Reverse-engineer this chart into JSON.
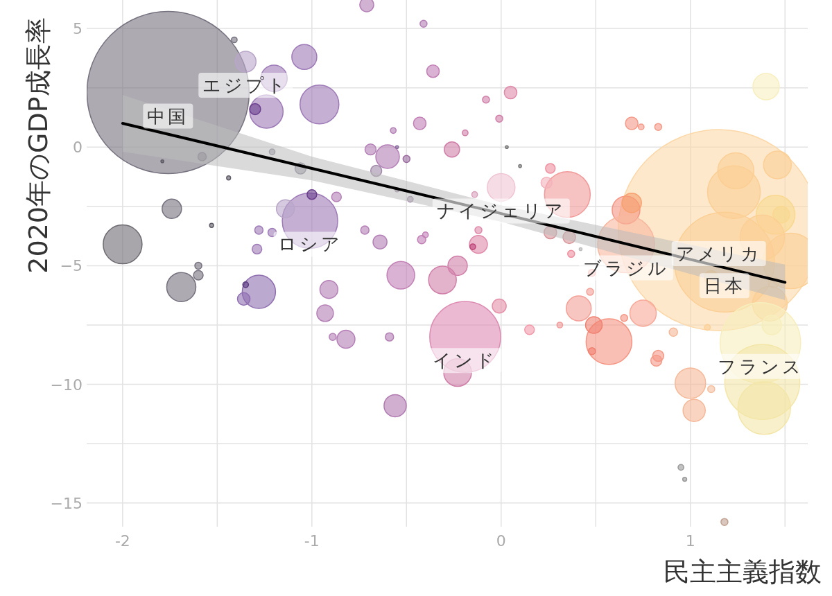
{
  "chart_data": {
    "type": "bubble",
    "xlabel": "民主主義指数",
    "ylabel": "2020年のGDP成長率",
    "xlim": [
      -2.19,
      1.62
    ],
    "ylim": [
      -16,
      6.2
    ],
    "xticks": [
      -2,
      {
        "value": -1.5,
        "label": null
      },
      -1,
      {
        "value": -0.5,
        "label": null
      },
      0,
      {
        "value": 0.5,
        "label": null
      },
      1,
      {
        "value": 1.5,
        "label": null
      }
    ],
    "yticks": [
      {
        "value": -15,
        "label": "−15"
      },
      {
        "value": -12.5,
        "label": null
      },
      {
        "value": -10,
        "label": "−10"
      },
      {
        "value": -7.5,
        "label": null
      },
      {
        "value": -5,
        "label": "−5"
      },
      {
        "value": -2.5,
        "label": null
      },
      0,
      {
        "value": 2.5,
        "label": null
      },
      5
    ],
    "grid": true,
    "series": [
      {
        "x": [
          1.15,
          -1.76,
          1.18,
          -1.41,
          -1.35,
          -1.04,
          -1.2,
          -1.24,
          -1.3,
          -0.96,
          -1.79,
          -1.58,
          -1.21,
          -1.44,
          -1.06,
          -1.74,
          -1.53,
          -1.28,
          -1.21,
          -1.29,
          -1.01,
          -1.14,
          -1.0,
          -0.87,
          -2.0,
          -1.6,
          -1.6,
          -1.69,
          -1.28,
          -1.36,
          -1.35,
          -0.91,
          -0.93,
          -0.89,
          -0.82,
          -0.71,
          -0.41,
          -0.36,
          -0.08,
          0.05,
          -0.43,
          -0.57,
          -0.19,
          -0.01,
          -0.26,
          -0.69,
          -0.6,
          -0.55,
          -0.5,
          -0.66,
          0.03,
          0.1,
          0.26,
          0.0,
          0.35,
          0.24,
          -0.14,
          -0.48,
          -0.55,
          0.26,
          0.36,
          0.37,
          -0.72,
          -0.64,
          -0.42,
          -0.4,
          -0.12,
          -0.12,
          -0.15,
          -0.53,
          -0.31,
          -0.23,
          -0.19,
          -0.23,
          -0.01,
          -0.59,
          -0.56,
          0.15,
          0.31,
          0.41,
          0.48,
          0.47,
          0.57,
          0.49,
          0.48,
          0.42,
          0.69,
          0.74,
          0.83,
          0.66,
          0.69,
          0.66,
          1.24,
          1.46,
          1.23,
          1.45,
          1.48,
          1.11,
          1.44,
          1.38,
          1.42,
          1.53,
          1.09,
          1.37,
          1.38,
          1.39,
          1.43,
          1.0,
          1.02,
          1.11,
          0.91,
          0.83,
          0.82,
          0.75,
          0.65,
          0.95,
          0.97,
          1.18,
          1.4
        ],
        "values": [
          -3.5,
          2.3,
          -4.85,
          4.52,
          3.6,
          3.8,
          2.9,
          1.5,
          1.6,
          1.8,
          -0.6,
          -0.4,
          -0.2,
          -1.3,
          -0.9,
          -2.6,
          -3.3,
          -3.5,
          -3.6,
          -4.3,
          -3.1,
          -2.6,
          -2.0,
          -2.1,
          -4.1,
          -5.0,
          -5.4,
          -5.9,
          -6.1,
          -6.4,
          -5.8,
          -6.0,
          -7.0,
          -8.0,
          -8.1,
          6.0,
          5.2,
          3.2,
          2.0,
          2.3,
          1.0,
          0.7,
          0.6,
          1.2,
          -0.1,
          -0.1,
          -0.4,
          0.0,
          -0.5,
          -1.0,
          0.0,
          -0.8,
          -0.9,
          -1.7,
          -2.0,
          -1.5,
          -2.0,
          -2.2,
          -1.8,
          -3.6,
          -3.8,
          -4.5,
          -3.5,
          -4.0,
          -3.9,
          -3.7,
          -3.5,
          -4.1,
          -4.2,
          -5.4,
          -5.6,
          -5.0,
          -8.0,
          -9.5,
          -6.7,
          -8.0,
          -10.9,
          -7.7,
          -7.5,
          -6.8,
          -5.3,
          -6.1,
          -8.2,
          -7.5,
          -8.6,
          -4.3,
          1.0,
          0.85,
          0.85,
          -2.65,
          -2.35,
          -4.1,
          -1.0,
          -0.75,
          -1.9,
          -2.85,
          -2.85,
          -5.5,
          -5.7,
          -3.8,
          -6.6,
          -4.8,
          -7.6,
          -8.25,
          -9.9,
          -11.0,
          -7.5,
          -9.95,
          -11.1,
          -10.2,
          -7.8,
          -8.8,
          -9.0,
          -7.0,
          -7.2,
          -13.5,
          -14.0,
          -15.8,
          2.55
        ],
        "sizes": [
          1,
          0.651,
          0.247,
          0.0008,
          0.0107,
          0.0154,
          0.0172,
          0.0274,
          0.003,
          0.0373,
          0.0002,
          0.0017,
          0.0008,
          0.0004,
          0.003,
          0.0093,
          0.0004,
          0.0017,
          0.0017,
          0.0023,
          0.0761,
          0.008,
          0.0023,
          0.0023,
          0.0373,
          0.0012,
          0.0023,
          0.021,
          0.0274,
          0.0039,
          0.0008,
          0.008,
          0.0068,
          0.0012,
          0.008,
          0.0048,
          0.0012,
          0.0039,
          0.0012,
          0.0039,
          0.0039,
          0.0008,
          0.0008,
          0.0012,
          0.0058,
          0.003,
          0.0137,
          0.0002,
          0.0012,
          0.003,
          0.0002,
          0.0002,
          0.0023,
          0.019,
          0.0518,
          0.003,
          0.0008,
          0.0008,
          0.0004,
          0.0039,
          0.0039,
          0.0012,
          0.0017,
          0.0048,
          0.0017,
          0.0008,
          0.0012,
          0.008,
          0.0008,
          0.019,
          0.019,
          0.0093,
          0.124,
          0.019,
          0.0048,
          0.0017,
          0.0122,
          0.0023,
          0.0008,
          0.0154,
          0.0012,
          0.0012,
          0.0518,
          0.0068,
          0.0012,
          0.0002,
          0.0039,
          0.0008,
          0.0012,
          0.019,
          0.0093,
          0.08,
          0.0322,
          0.019,
          0.0687,
          0.0373,
          0.0068,
          0.0048,
          0.003,
          0.0487,
          0.0297,
          0.0761,
          0.0008,
          0.16,
          0.139,
          0.0687,
          0.0093,
          0.023,
          0.0122,
          0.0012,
          0.0017,
          0.003,
          0.003,
          0.0172,
          0.0012,
          0.0008,
          0.0004,
          0.0012,
          0.0172
        ],
        "colors": [
          "#fcd8a8",
          "#77727f",
          "#fbcf95",
          "#77727f",
          "#b9a6c9",
          "#9e7bb8",
          "#9e7bb8",
          "#9e7bb8",
          "#6b3f8e",
          "#9e7bb8",
          "#5e5a66",
          "#77727f",
          "#8a8596",
          "#5e5a66",
          "#8a8596",
          "#77727f",
          "#5e5a66",
          "#9e7bb8",
          "#9e7bb8",
          "#9e7bb8",
          "#9e7bb8",
          "#b9a6c9",
          "#6b3f8e",
          "#b47fb6",
          "#6e6a72",
          "#77727f",
          "#77727f",
          "#77727f",
          "#8f6fb0",
          "#8f6fb0",
          "#5a3a7e",
          "#b47fb6",
          "#b47fb6",
          "#b47fb6",
          "#b47fb6",
          "#b47fb6",
          "#b47fb6",
          "#c27fb6",
          "#d07fa8",
          "#e088a8",
          "#c27fb6",
          "#b47fb6",
          "#d07fa8",
          "#d07fa8",
          "#d07fa8",
          "#b47fb6",
          "#b47fb6",
          "#8a6a9e",
          "#9a6a9e",
          "#a08aa8",
          "#777777",
          "#777777",
          "#ee8f9f",
          "#f0c4d4",
          "#f29a9a",
          "#f3b3bb",
          "#d8a0bc",
          "#a08aa8",
          "#a08aa8",
          "#d8959a",
          "#d8959a",
          "#ee8f9f",
          "#b47fb6",
          "#b47fb6",
          "#c27fb6",
          "#c27fb6",
          "#e088a8",
          "#e088a8",
          "#c0457a",
          "#c27fb6",
          "#d07fa8",
          "#d07fa8",
          "#dd8ab2",
          "#d07fa8",
          "#e590a8",
          "#b47fb6",
          "#b07ab0",
          "#f29aaa",
          "#f09a9a",
          "#f4a098",
          "#f4a098",
          "#f4a098",
          "#f59482",
          "#f08070",
          "#f08070",
          "#bbbbbb",
          "#f59a88",
          "#f59a88",
          "#f59a88",
          "#f59482",
          "#f7a070",
          "#f8b8a0",
          "#fbcf95",
          "#fbcf95",
          "#fbcf95",
          "#f9d890",
          "#f9d890",
          "#fbc880",
          "#fbcf95",
          "#fbcf95",
          "#fbcf95",
          "#fbcf95",
          "#fbcf95",
          "#f7eebd",
          "#f3e6a8",
          "#f3e6a8",
          "#f7eebd",
          "#f5b898",
          "#f5b898",
          "#f5c0a0",
          "#f5b898",
          "#f59a88",
          "#f59a88",
          "#f8a898",
          "#f59482",
          "#999999",
          "#999999",
          "#c0a090",
          "#f8efc0"
        ]
      },
      {
        "type": "line",
        "color": "#000000",
        "x": [
          -2,
          -1,
          0,
          1.5
        ],
        "values": [
          1.0,
          -0.9,
          -2.8,
          -5.7
        ],
        "lower": [
          -0.2,
          -1.4,
          -3.15,
          -6.45
        ],
        "upper": [
          2.2,
          -0.4,
          -2.45,
          -4.95
        ]
      }
    ],
    "annotations": [
      {
        "text": "中国",
        "x": -1.76,
        "y": 2.3
      },
      {
        "text": "エジプト",
        "x": -1.35,
        "y": 3.6
      },
      {
        "text": "ロシア",
        "x": -1.01,
        "y": -3.1
      },
      {
        "text": "インド",
        "x": -0.19,
        "y": -8.0
      },
      {
        "text": "ナイジェリア",
        "x": 0.0,
        "y": -1.7
      },
      {
        "text": "ブラジル",
        "x": 0.66,
        "y": -4.1
      },
      {
        "text": "アメリカ",
        "x": 1.15,
        "y": -3.5
      },
      {
        "text": "日本",
        "x": 1.18,
        "y": -4.85
      },
      {
        "text": "フランス",
        "x": 1.37,
        "y": -8.25
      }
    ]
  }
}
